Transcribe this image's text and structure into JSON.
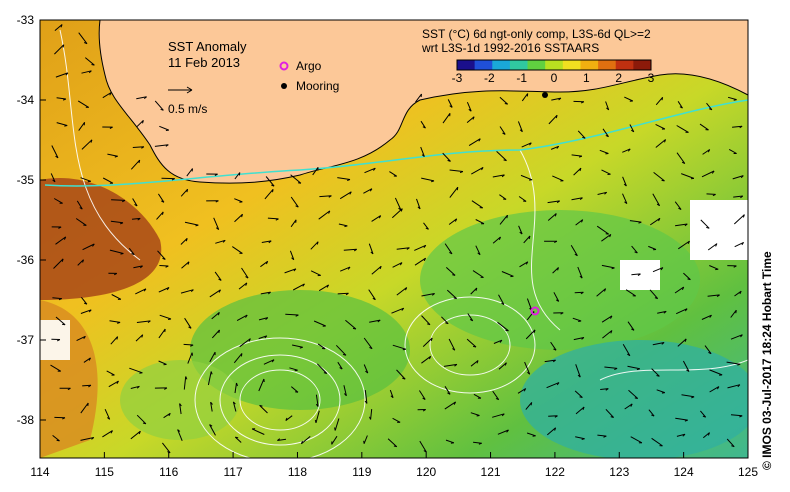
{
  "title": "SST Anomaly",
  "date": "11 Feb 2013",
  "vector_scale_label": "0.5 m/s",
  "legend": {
    "argo": {
      "label": "Argo",
      "color": "#e020e0"
    },
    "mooring": {
      "label": "Mooring",
      "color": "#000000"
    }
  },
  "colorbar": {
    "title_line1": "SST (°C) 6d ngt-only comp, L3S-6d QL>=2",
    "title_line2": "wrt L3S-1d 1992-2016 SSTAARS",
    "ticks": [
      "-3",
      "-2",
      "-1",
      "0",
      "1",
      "2",
      "3"
    ],
    "min": -3,
    "max": 3,
    "colors": [
      "#1a0f8c",
      "#1f4fd8",
      "#1aa8d8",
      "#30c8a0",
      "#60d040",
      "#b8e020",
      "#f0e020",
      "#f0b010",
      "#e07010",
      "#c03010",
      "#8c1a0a"
    ]
  },
  "x_ticks": [
    "114",
    "115",
    "116",
    "117",
    "118",
    "119",
    "120",
    "121",
    "122",
    "123",
    "124",
    "125"
  ],
  "y_ticks": [
    "-33",
    "-34",
    "-35",
    "-36",
    "-37",
    "-38"
  ],
  "land_color": "#fcc898",
  "credit": "© IMOS 03-Jul-2017 18:24 Hobart Time"
}
